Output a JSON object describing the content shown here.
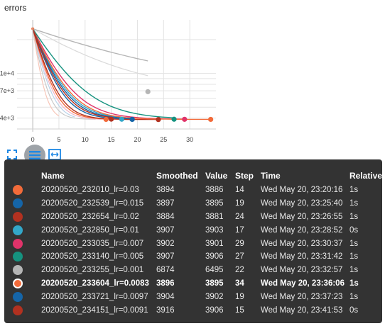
{
  "chart_data": {
    "type": "line",
    "title": "errors",
    "xlabel": "",
    "ylabel": "",
    "x_ticks": [
      "0",
      "5",
      "10",
      "15",
      "20",
      "25",
      "30"
    ],
    "y_ticks": [
      "1e+4",
      "7e+3",
      "4e+3"
    ],
    "xlim": [
      -3,
      35
    ],
    "y_scale": "log",
    "ylim": [
      3200,
      30000
    ],
    "start_value": 25000,
    "grid": true,
    "series": [
      {
        "name": "20200520_232010_lr=0.03",
        "color": "#f26b3a",
        "final_step": 14,
        "final_value": 3894,
        "decay": 2.2
      },
      {
        "name": "20200520_232539_lr=0.015",
        "color": "#1565a8",
        "final_step": 19,
        "final_value": 3897,
        "decay": 2.8
      },
      {
        "name": "20200520_232654_lr=0.02",
        "color": "#b23120",
        "final_step": 24,
        "final_value": 3884,
        "decay": 2.4
      },
      {
        "name": "20200520_232850_lr=0.01",
        "color": "#33a7c9",
        "final_step": 17,
        "final_value": 3907,
        "decay": 3.4
      },
      {
        "name": "20200520_233035_lr=0.007",
        "color": "#e0336a",
        "final_step": 29,
        "final_value": 3902,
        "decay": 4.0
      },
      {
        "name": "20200520_233140_lr=0.005",
        "color": "#15927f",
        "final_step": 27,
        "final_value": 3907,
        "decay": 5.2
      },
      {
        "name": "20200520_233255_lr=0.001",
        "color": "#b5b5b5",
        "final_step": 22,
        "final_value": 6874,
        "decay": 20
      },
      {
        "name": "20200520_233604_lr=0.0083",
        "color": "#f26b3a",
        "final_step": 34,
        "final_value": 3896,
        "decay": 3.6
      },
      {
        "name": "20200520_233721_lr=0.0097",
        "color": "#1565a8",
        "final_step": 19,
        "final_value": 3904,
        "decay": 3.2
      },
      {
        "name": "20200520_234151_lr=0.0091",
        "color": "#b23120",
        "final_step": 15,
        "final_value": 3916,
        "decay": 3.0
      }
    ],
    "faint_series": [
      {
        "color": "#f7c6b8",
        "final_step": 5,
        "final_value": 3850,
        "decay": 1.2
      },
      {
        "color": "#b9d3ea",
        "final_step": 8,
        "final_value": 3850,
        "decay": 1.8
      },
      {
        "color": "#c8c8c8",
        "final_step": 12,
        "final_value": 3900,
        "decay": 1.5
      },
      {
        "color": "#f2b3c5",
        "final_step": 14,
        "final_value": 3880,
        "decay": 2.0
      },
      {
        "color": "#d9d9d9",
        "final_step": 22,
        "final_value": 6600,
        "decay": 12
      }
    ]
  },
  "tooltip": {
    "headers": [
      "Name",
      "Smoothed",
      "Value",
      "Step",
      "Time",
      "Relative"
    ],
    "active_index": 7,
    "rows": [
      {
        "color": "#f26b3a",
        "name": "20200520_232010_lr=0.03",
        "smoothed": "3894",
        "value": "3886",
        "step": "14",
        "time": "Wed May 20, 23:20:16",
        "relative": "1s"
      },
      {
        "color": "#1565a8",
        "name": "20200520_232539_lr=0.015",
        "smoothed": "3897",
        "value": "3895",
        "step": "19",
        "time": "Wed May 20, 23:25:40",
        "relative": "1s"
      },
      {
        "color": "#b23120",
        "name": "20200520_232654_lr=0.02",
        "smoothed": "3884",
        "value": "3881",
        "step": "24",
        "time": "Wed May 20, 23:26:55",
        "relative": "1s"
      },
      {
        "color": "#33a7c9",
        "name": "20200520_232850_lr=0.01",
        "smoothed": "3907",
        "value": "3903",
        "step": "17",
        "time": "Wed May 20, 23:28:52",
        "relative": "0s"
      },
      {
        "color": "#e0336a",
        "name": "20200520_233035_lr=0.007",
        "smoothed": "3902",
        "value": "3901",
        "step": "29",
        "time": "Wed May 20, 23:30:37",
        "relative": "1s"
      },
      {
        "color": "#15927f",
        "name": "20200520_233140_lr=0.005",
        "smoothed": "3907",
        "value": "3906",
        "step": "27",
        "time": "Wed May 20, 23:31:42",
        "relative": "1s"
      },
      {
        "color": "#b5b5b5",
        "name": "20200520_233255_lr=0.001",
        "smoothed": "6874",
        "value": "6495",
        "step": "22",
        "time": "Wed May 20, 23:32:57",
        "relative": "1s"
      },
      {
        "color": "#f26b3a",
        "name": "20200520_233604_lr=0.0083",
        "smoothed": "3896",
        "value": "3895",
        "step": "34",
        "time": "Wed May 20, 23:36:06",
        "relative": "1s"
      },
      {
        "color": "#1565a8",
        "name": "20200520_233721_lr=0.0097",
        "smoothed": "3904",
        "value": "3902",
        "step": "19",
        "time": "Wed May 20, 23:37:23",
        "relative": "1s"
      },
      {
        "color": "#b23120",
        "name": "20200520_234151_lr=0.0091",
        "smoothed": "3916",
        "value": "3906",
        "step": "15",
        "time": "Wed May 20, 23:41:53",
        "relative": "0s"
      }
    ]
  },
  "controls": {
    "expand_icon": "fullscreen-icon",
    "toggle_icon": "list-icon",
    "fit_icon": "fit-domain-icon"
  }
}
